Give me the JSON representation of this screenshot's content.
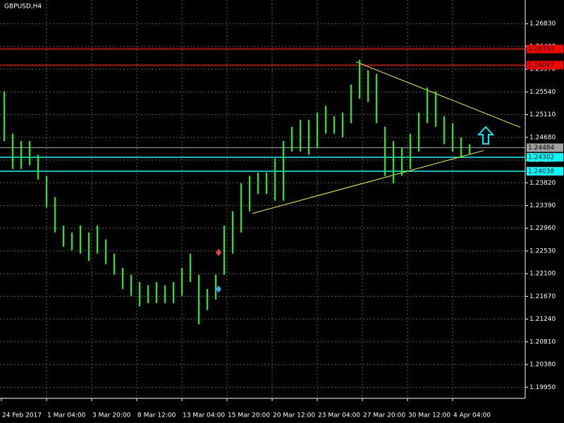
{
  "chart_data": {
    "type": "highlow",
    "title": "GBPUSD,H4",
    "color": "#00ff00",
    "background": "#000000",
    "grid": true,
    "ylim": [
      1.1974,
      1.2728
    ],
    "yticks": [
      {
        "value": 1.2683,
        "label": "1.26830"
      },
      {
        "value": 1.264,
        "label": "1.26400"
      },
      {
        "value": 1.2597,
        "label": "1.25970"
      },
      {
        "value": 1.2554,
        "label": "1.25540"
      },
      {
        "value": 1.2511,
        "label": "1.25110"
      },
      {
        "value": 1.2468,
        "label": "1.24680"
      },
      {
        "value": 1.2425,
        "label": "1.24250"
      },
      {
        "value": 1.2382,
        "label": "1.23820"
      },
      {
        "value": 1.2339,
        "label": "1.23390"
      },
      {
        "value": 1.2296,
        "label": "1.22960"
      },
      {
        "value": 1.2253,
        "label": "1.22530"
      },
      {
        "value": 1.221,
        "label": "1.22100"
      },
      {
        "value": 1.2167,
        "label": "1.21670"
      },
      {
        "value": 1.2124,
        "label": "1.21240"
      },
      {
        "value": 1.2081,
        "label": "1.20810"
      },
      {
        "value": 1.2038,
        "label": "1.20380"
      },
      {
        "value": 1.1995,
        "label": "1.19950"
      }
    ],
    "x_labels": [
      "24 Feb 2017",
      "1 Mar 04:00",
      "3 Mar 20:00",
      "8 Mar 12:00",
      "13 Mar 04:00",
      "15 Mar 20:00",
      "20 Mar 12:00",
      "23 Mar 04:00",
      "27 Mar 20:00",
      "30 Mar 12:00",
      "4 Apr 04:00"
    ],
    "high": [
      1.2555,
      1.2475,
      1.2461,
      1.2461,
      1.2435,
      1.2395,
      1.2355,
      1.2301,
      1.2288,
      1.2301,
      1.2288,
      1.2301,
      1.2275,
      1.2248,
      1.2221,
      1.2208,
      1.2194,
      1.2188,
      1.2194,
      1.2188,
      1.2194,
      1.2221,
      1.2248,
      1.2208,
      1.2181,
      1.2208,
      1.2301,
      1.2328,
      1.2381,
      1.2395,
      1.2401,
      1.2401,
      1.2428,
      1.2461,
      1.2488,
      1.2501,
      1.2501,
      1.2515,
      1.2528,
      1.2508,
      1.2515,
      1.2568,
      1.2615,
      1.2595,
      1.2588,
      1.2488,
      1.2461,
      1.2448,
      1.2475,
      1.2515,
      1.2562,
      1.2555,
      1.2508,
      1.2495,
      1.2468,
      1.2455
    ],
    "low": [
      1.2461,
      1.2408,
      1.2408,
      1.2415,
      1.2388,
      1.2335,
      1.2288,
      1.2261,
      1.2254,
      1.2248,
      1.2234,
      1.2248,
      1.2228,
      1.2208,
      1.2181,
      1.2168,
      1.2148,
      1.2154,
      1.2154,
      1.2154,
      1.2154,
      1.2168,
      1.2194,
      1.2114,
      1.2141,
      1.2161,
      1.2208,
      1.2248,
      1.2288,
      1.2328,
      1.2361,
      1.2361,
      1.2348,
      1.2348,
      1.2441,
      1.2441,
      1.2435,
      1.2448,
      1.2475,
      1.2475,
      1.2468,
      1.2495,
      1.2541,
      1.2535,
      1.2495,
      1.2395,
      1.2381,
      1.2395,
      1.2408,
      1.2441,
      1.2495,
      1.2488,
      1.2455,
      1.2441,
      1.2432,
      1.2435
    ],
    "levels": [
      {
        "value": 1.26353,
        "label": "1.26353",
        "color": "#ff0000"
      },
      {
        "value": 1.26047,
        "label": "1.26047",
        "color": "#ff0000"
      },
      {
        "value": 1.24484,
        "label": "1.24484",
        "color": "#a0a0a0"
      },
      {
        "value": 1.24302,
        "label": "1.24302",
        "color": "#00ffff"
      },
      {
        "value": 1.24038,
        "label": "1.24038",
        "color": "#00ffff"
      }
    ],
    "trendlines": [
      {
        "values": [
          1.2611,
          1.2487
        ],
        "color": "#ffff00"
      },
      {
        "values": [
          1.2324,
          1.2443
        ],
        "color": "#ffff00"
      }
    ]
  }
}
